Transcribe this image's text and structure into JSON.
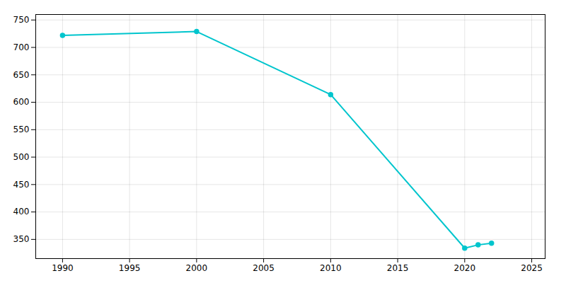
{
  "chart_data": {
    "type": "line",
    "x": [
      1990,
      2000,
      2010,
      2020,
      2021,
      2022
    ],
    "values": [
      722,
      729,
      614,
      334,
      340,
      343
    ],
    "color": "#00C5CD",
    "marker": "circle",
    "xlim": [
      1988,
      2026
    ],
    "ylim": [
      315,
      760
    ],
    "xticks": [
      1990,
      1995,
      2000,
      2005,
      2010,
      2015,
      2020,
      2025
    ],
    "yticks": [
      350,
      400,
      450,
      500,
      550,
      600,
      650,
      700,
      750
    ],
    "grid": true
  }
}
